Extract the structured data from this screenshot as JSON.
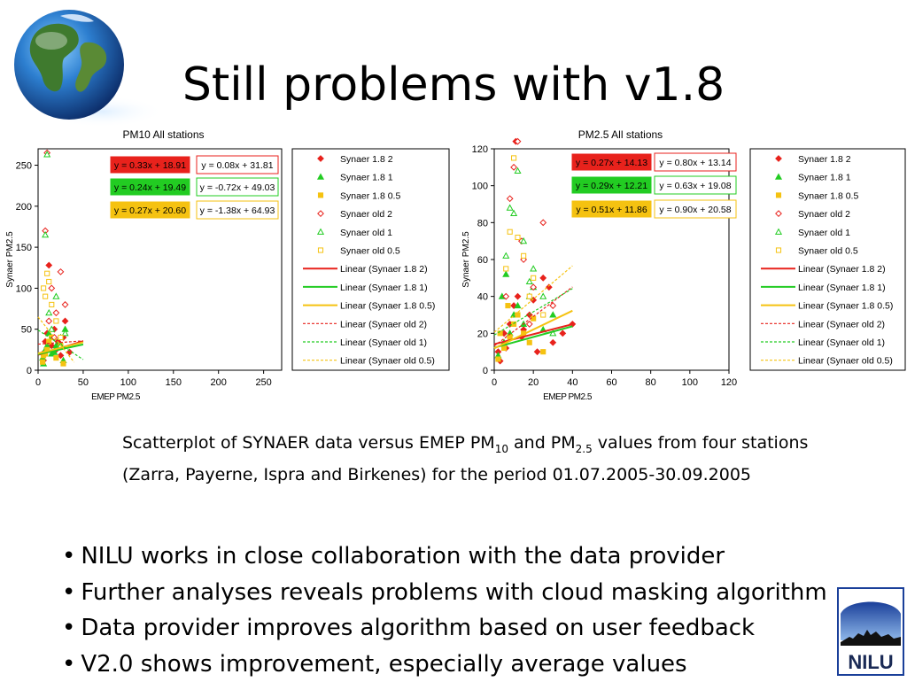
{
  "slide": {
    "title": "Still problems with v1.8",
    "caption": {
      "text_1": "Scatterplot of SYNAER data versus EMEP PM",
      "sub_1": "10",
      "text_2": " and PM",
      "sub_2": "2.5",
      "text_3": " values from four stations (Zarra, Payerne, Ispra and Birkenes) for the period 01.07.2005-30.09.2005"
    },
    "bullets": [
      "NILU works in close collaboration with the data provider",
      "Further analyses reveals problems with cloud masking algorithm",
      "Data provider improves algorithm based on user feedback",
      "V2.0 shows improvement, especially average values"
    ],
    "logo_text": "NILU"
  },
  "legend": [
    {
      "label": "Synaer 1.8 2",
      "marker": "diamond",
      "fill": true,
      "color": "#e8221c"
    },
    {
      "label": "Synaer 1.8 1",
      "marker": "triangle",
      "fill": true,
      "color": "#22cc22"
    },
    {
      "label": "Synaer 1.8 0.5",
      "marker": "square",
      "fill": true,
      "color": "#f5c211"
    },
    {
      "label": "Synaer old 2",
      "marker": "diamond",
      "fill": false,
      "color": "#e8221c"
    },
    {
      "label": "Synaer old 1",
      "marker": "triangle",
      "fill": false,
      "color": "#22cc22"
    },
    {
      "label": "Synaer old 0.5",
      "marker": "square",
      "fill": false,
      "color": "#f5c211"
    },
    {
      "label": "Linear (Synaer 1.8 2)",
      "line": "solid",
      "color": "#e8221c"
    },
    {
      "label": "Linear (Synaer 1.8 1)",
      "line": "solid",
      "color": "#22cc22"
    },
    {
      "label": "Linear (Synaer 1.8 0.5)",
      "line": "solid",
      "color": "#f5c211"
    },
    {
      "label": "Linear (Synaer old 2)",
      "line": "dashed",
      "color": "#e8221c"
    },
    {
      "label": "Linear (Synaer old 1)",
      "line": "dashed",
      "color": "#22cc22"
    },
    {
      "label": "Linear (Synaer old 0.5)",
      "line": "dashed",
      "color": "#f5c211"
    }
  ],
  "chart_data": [
    {
      "type": "scatter",
      "title": "PM10 All stations",
      "xlabel": "EMEP PM2.5",
      "ylabel": "Synaer PM2.5",
      "xlim": [
        0,
        270
      ],
      "ylim": [
        0,
        270
      ],
      "xticks": [
        0,
        50,
        100,
        150,
        200,
        250
      ],
      "yticks": [
        0,
        50,
        100,
        150,
        200,
        250
      ],
      "grid": false,
      "legend_placement": "right",
      "series": [
        {
          "name": "Synaer 1.8 2",
          "points": [
            [
              5,
              20
            ],
            [
              8,
              35
            ],
            [
              10,
              45
            ],
            [
              12,
              128
            ],
            [
              15,
              30
            ],
            [
              20,
              25
            ],
            [
              25,
              18
            ],
            [
              28,
              40
            ],
            [
              30,
              60
            ],
            [
              6,
              12
            ],
            [
              18,
              50
            ],
            [
              22,
              35
            ],
            [
              35,
              22
            ]
          ]
        },
        {
          "name": "Synaer 1.8 1",
          "points": [
            [
              5,
              15
            ],
            [
              8,
              25
            ],
            [
              10,
              30
            ],
            [
              12,
              45
            ],
            [
              15,
              20
            ],
            [
              20,
              30
            ],
            [
              25,
              40
            ],
            [
              28,
              12
            ],
            [
              30,
              50
            ],
            [
              6,
              8
            ],
            [
              18,
              22
            ]
          ]
        },
        {
          "name": "Synaer 1.8 0.5",
          "points": [
            [
              5,
              10
            ],
            [
              8,
              20
            ],
            [
              10,
              25
            ],
            [
              12,
              35
            ],
            [
              15,
              40
            ],
            [
              20,
              15
            ],
            [
              25,
              30
            ],
            [
              28,
              8
            ],
            [
              6,
              18
            ]
          ]
        },
        {
          "name": "Synaer old 2",
          "points": [
            [
              8,
              170
            ],
            [
              10,
              265
            ],
            [
              12,
              60
            ],
            [
              15,
              100
            ],
            [
              20,
              70
            ],
            [
              25,
              120
            ],
            [
              30,
              80
            ],
            [
              18,
              40
            ]
          ]
        },
        {
          "name": "Synaer old 1",
          "points": [
            [
              8,
              165
            ],
            [
              10,
              263
            ],
            [
              12,
              70
            ],
            [
              15,
              50
            ],
            [
              20,
              90
            ],
            [
              25,
              30
            ],
            [
              30,
              45
            ]
          ]
        },
        {
          "name": "Synaer old 0.5",
          "points": [
            [
              8,
              90
            ],
            [
              10,
              118
            ],
            [
              12,
              108
            ],
            [
              15,
              80
            ],
            [
              20,
              60
            ],
            [
              25,
              40
            ],
            [
              6,
              100
            ]
          ]
        }
      ],
      "trendlines": [
        {
          "series": "Synaer 1.8 2",
          "equation": "y = 0.33x + 18.91",
          "slope": 0.33,
          "intercept": 18.91,
          "x_range": [
            0,
            50
          ]
        },
        {
          "series": "Synaer 1.8 1",
          "equation": "y = 0.24x + 19.49",
          "slope": 0.24,
          "intercept": 19.49,
          "x_range": [
            0,
            50
          ]
        },
        {
          "series": "Synaer 1.8 0.5",
          "equation": "y = 0.27x + 20.60",
          "slope": 0.27,
          "intercept": 20.6,
          "x_range": [
            0,
            50
          ]
        },
        {
          "series": "Synaer old 2",
          "equation": "y = 0.08x + 31.81",
          "slope": 0.08,
          "intercept": 31.81,
          "x_range": [
            0,
            50
          ]
        },
        {
          "series": "Synaer old 1",
          "equation": "y = -0.72x + 49.03",
          "slope": -0.72,
          "intercept": 49.03,
          "x_range": [
            0,
            50
          ]
        },
        {
          "series": "Synaer old 0.5",
          "equation": "y = -1.38x + 64.93",
          "slope": -1.38,
          "intercept": 64.93,
          "x_range": [
            0,
            40
          ]
        }
      ]
    },
    {
      "type": "scatter",
      "title": "PM2.5 All stations",
      "xlabel": "EMEP PM2.5",
      "ylabel": "Synaer PM2.5",
      "xlim": [
        0,
        120
      ],
      "ylim": [
        0,
        120
      ],
      "xticks": [
        0,
        20,
        40,
        60,
        80,
        100,
        120
      ],
      "yticks": [
        0,
        20,
        40,
        60,
        80,
        100,
        120
      ],
      "grid": false,
      "legend_placement": "right",
      "series": [
        {
          "name": "Synaer 1.8 2",
          "points": [
            [
              2,
              10
            ],
            [
              5,
              20
            ],
            [
              8,
              25
            ],
            [
              10,
              35
            ],
            [
              11,
              124
            ],
            [
              12,
              40
            ],
            [
              15,
              22
            ],
            [
              18,
              30
            ],
            [
              20,
              38
            ],
            [
              25,
              50
            ],
            [
              28,
              45
            ],
            [
              30,
              15
            ],
            [
              35,
              20
            ],
            [
              40,
              25
            ],
            [
              3,
              5
            ],
            [
              6,
              12
            ],
            [
              14,
              18
            ],
            [
              22,
              10
            ]
          ]
        },
        {
          "name": "Synaer 1.8 1",
          "points": [
            [
              2,
              8
            ],
            [
              5,
              15
            ],
            [
              8,
              20
            ],
            [
              10,
              30
            ],
            [
              12,
              35
            ],
            [
              15,
              25
            ],
            [
              18,
              40
            ],
            [
              20,
              45
            ],
            [
              25,
              22
            ],
            [
              30,
              30
            ],
            [
              4,
              40
            ],
            [
              6,
              52
            ]
          ]
        },
        {
          "name": "Synaer 1.8 0.5",
          "points": [
            [
              2,
              6
            ],
            [
              5,
              12
            ],
            [
              8,
              18
            ],
            [
              10,
              25
            ],
            [
              12,
              30
            ],
            [
              15,
              20
            ],
            [
              18,
              15
            ],
            [
              20,
              28
            ],
            [
              25,
              10
            ],
            [
              3,
              20
            ],
            [
              7,
              35
            ]
          ]
        },
        {
          "name": "Synaer old 2",
          "points": [
            [
              8,
              93
            ],
            [
              10,
              110
            ],
            [
              12,
              124
            ],
            [
              15,
              60
            ],
            [
              20,
              45
            ],
            [
              25,
              80
            ],
            [
              30,
              35
            ],
            [
              18,
              25
            ],
            [
              6,
              40
            ],
            [
              14,
              70
            ]
          ]
        },
        {
          "name": "Synaer old 1",
          "points": [
            [
              8,
              88
            ],
            [
              10,
              85
            ],
            [
              12,
              108
            ],
            [
              15,
              70
            ],
            [
              20,
              55
            ],
            [
              25,
              40
            ],
            [
              30,
              20
            ],
            [
              6,
              62
            ],
            [
              18,
              48
            ]
          ]
        },
        {
          "name": "Synaer old 0.5",
          "points": [
            [
              8,
              75
            ],
            [
              10,
              115
            ],
            [
              12,
              72
            ],
            [
              15,
              62
            ],
            [
              20,
              50
            ],
            [
              25,
              30
            ],
            [
              6,
              55
            ],
            [
              18,
              40
            ]
          ]
        }
      ],
      "trendlines": [
        {
          "series": "Synaer 1.8 2",
          "equation": "y = 0.27x + 14.13",
          "slope": 0.27,
          "intercept": 14.13,
          "x_range": [
            0,
            40
          ]
        },
        {
          "series": "Synaer 1.8 1",
          "equation": "y = 0.29x + 12.21",
          "slope": 0.29,
          "intercept": 12.21,
          "x_range": [
            0,
            40
          ]
        },
        {
          "series": "Synaer 1.8 0.5",
          "equation": "y = 0.51x + 11.86",
          "slope": 0.51,
          "intercept": 11.86,
          "x_range": [
            0,
            40
          ]
        },
        {
          "series": "Synaer old 2",
          "equation": "y = 0.80x + 13.14",
          "slope": 0.8,
          "intercept": 13.14,
          "x_range": [
            0,
            40
          ]
        },
        {
          "series": "Synaer old 1",
          "equation": "y = 0.63x + 19.08",
          "slope": 0.63,
          "intercept": 19.08,
          "x_range": [
            0,
            40
          ]
        },
        {
          "series": "Synaer old 0.5",
          "equation": "y = 0.90x + 20.58",
          "slope": 0.9,
          "intercept": 20.58,
          "x_range": [
            0,
            40
          ]
        }
      ]
    }
  ]
}
